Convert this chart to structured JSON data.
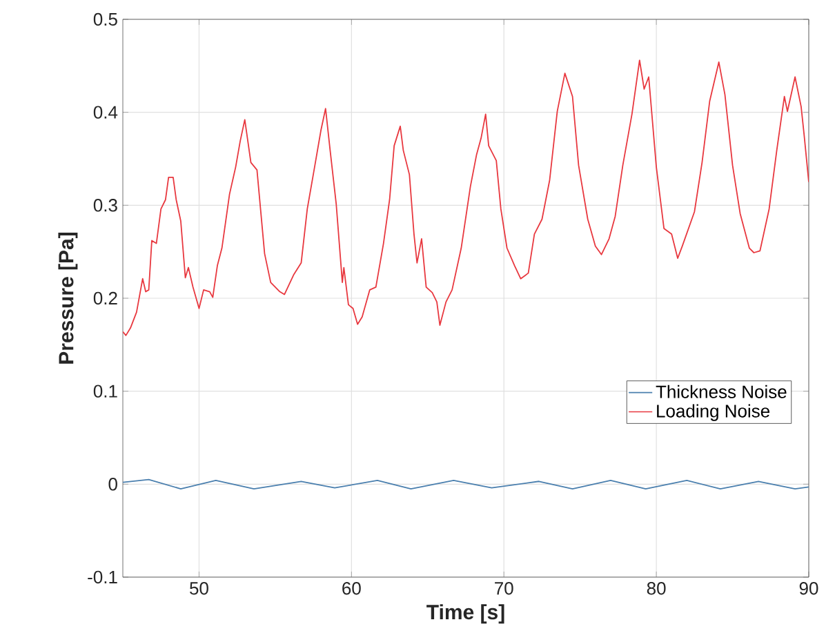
{
  "chart_data": {
    "type": "line",
    "xlabel": "Time [s]",
    "ylabel": "Pressure [Pa]",
    "xlim": [
      45,
      90
    ],
    "xticks": [
      50,
      60,
      70,
      80,
      90
    ],
    "ylim": [
      -0.1,
      0.5
    ],
    "yticks": [
      -0.1,
      0,
      0.1,
      0.2,
      0.3,
      0.4,
      0.5
    ],
    "grid": true,
    "legend": "right",
    "series": [
      {
        "name": "Thickness Noise",
        "color": "#4a7fae",
        "x": [
          45,
          46.7,
          48.8,
          51.1,
          53.6,
          56.7,
          58.9,
          61.7,
          63.9,
          66.7,
          69.2,
          72.3,
          74.5,
          77.0,
          79.3,
          82.0,
          84.2,
          86.7,
          89.1,
          90
        ],
        "values": [
          0.002,
          0.005,
          -0.005,
          0.004,
          -0.005,
          0.003,
          -0.004,
          0.004,
          -0.005,
          0.004,
          -0.004,
          0.003,
          -0.005,
          0.004,
          -0.005,
          0.004,
          -0.005,
          0.003,
          -0.005,
          -0.003
        ]
      },
      {
        "name": "Loading Noise",
        "color": "#e8383f",
        "x": [
          45,
          45.2,
          45.5,
          45.9,
          46.3,
          46.5,
          46.7,
          46.9,
          47.2,
          47.5,
          47.8,
          48.0,
          48.3,
          48.5,
          48.8,
          49.1,
          49.3,
          49.6,
          50.0,
          50.3,
          50.7,
          50.9,
          51.2,
          51.5,
          52.0,
          52.4,
          52.7,
          53.0,
          53.2,
          53.4,
          53.8,
          54.3,
          54.7,
          55.3,
          55.6,
          56.2,
          56.7,
          57.1,
          57.6,
          58.0,
          58.3,
          58.6,
          59.0,
          59.4,
          59.5,
          59.8,
          60.1,
          60.4,
          60.7,
          61.2,
          61.6,
          62.1,
          62.5,
          62.8,
          63.2,
          63.4,
          63.8,
          64.1,
          64.3,
          64.6,
          64.9,
          65.3,
          65.6,
          65.8,
          66.2,
          66.6,
          67.2,
          67.8,
          68.2,
          68.5,
          68.8,
          69.0,
          69.5,
          69.8,
          70.2,
          70.7,
          71.1,
          71.6,
          72.0,
          72.5,
          73.0,
          73.5,
          74.0,
          74.5,
          74.9,
          75.5,
          76.0,
          76.4,
          76.9,
          77.3,
          77.8,
          78.4,
          78.9,
          79.2,
          79.5,
          80.0,
          80.5,
          81.0,
          81.4,
          81.7,
          82.5,
          83.0,
          83.5,
          84.1,
          84.5,
          85.0,
          85.5,
          86.1,
          86.4,
          86.8,
          87.4,
          87.9,
          88.4,
          88.6,
          89.1,
          89.5,
          89.7,
          90.0
        ],
        "values": [
          0.164,
          0.16,
          0.168,
          0.185,
          0.221,
          0.207,
          0.209,
          0.262,
          0.259,
          0.296,
          0.306,
          0.33,
          0.33,
          0.306,
          0.283,
          0.222,
          0.233,
          0.212,
          0.189,
          0.209,
          0.207,
          0.201,
          0.235,
          0.254,
          0.312,
          0.341,
          0.369,
          0.392,
          0.369,
          0.346,
          0.338,
          0.248,
          0.217,
          0.207,
          0.204,
          0.225,
          0.238,
          0.296,
          0.343,
          0.381,
          0.404,
          0.359,
          0.301,
          0.217,
          0.233,
          0.193,
          0.189,
          0.172,
          0.18,
          0.209,
          0.212,
          0.259,
          0.306,
          0.364,
          0.385,
          0.359,
          0.333,
          0.269,
          0.238,
          0.264,
          0.212,
          0.206,
          0.196,
          0.171,
          0.196,
          0.209,
          0.254,
          0.32,
          0.354,
          0.372,
          0.398,
          0.364,
          0.348,
          0.296,
          0.254,
          0.235,
          0.221,
          0.227,
          0.269,
          0.285,
          0.327,
          0.401,
          0.442,
          0.417,
          0.343,
          0.285,
          0.256,
          0.247,
          0.264,
          0.288,
          0.343,
          0.398,
          0.456,
          0.425,
          0.438,
          0.341,
          0.275,
          0.269,
          0.243,
          0.256,
          0.293,
          0.346,
          0.412,
          0.454,
          0.419,
          0.343,
          0.291,
          0.254,
          0.249,
          0.251,
          0.296,
          0.359,
          0.417,
          0.401,
          0.438,
          0.406,
          0.375,
          0.325
        ]
      }
    ]
  }
}
